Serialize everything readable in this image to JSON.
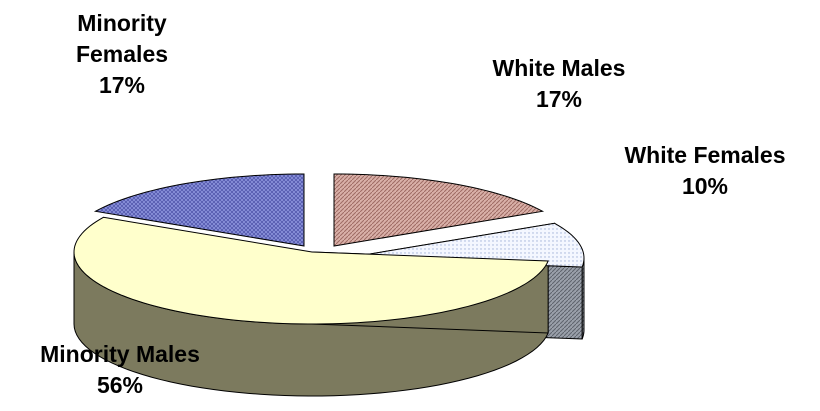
{
  "chart_data": {
    "type": "pie",
    "style": "3d-exploded",
    "categories": [
      "White Males",
      "White Females",
      "Minority Males",
      "Minority Females"
    ],
    "values": [
      17,
      10,
      56,
      17
    ],
    "value_labels": [
      "17%",
      "10%",
      "56%",
      "17%"
    ],
    "label_lines": [
      [
        "White Males",
        "17%"
      ],
      [
        "White Females",
        "10%"
      ],
      [
        "Minority Males",
        "56%"
      ],
      [
        "Minority",
        "Females",
        "17%"
      ]
    ],
    "colors": {
      "top": [
        "#c99b93",
        "#e6ecfa",
        "#ffffcc",
        "#7a82d4"
      ],
      "side": [
        "#8a5e58",
        "#8a8f99",
        "#7c7a5e",
        "#3c3f8c"
      ],
      "edge": "#000000"
    },
    "legend": "none",
    "grid": false
  }
}
